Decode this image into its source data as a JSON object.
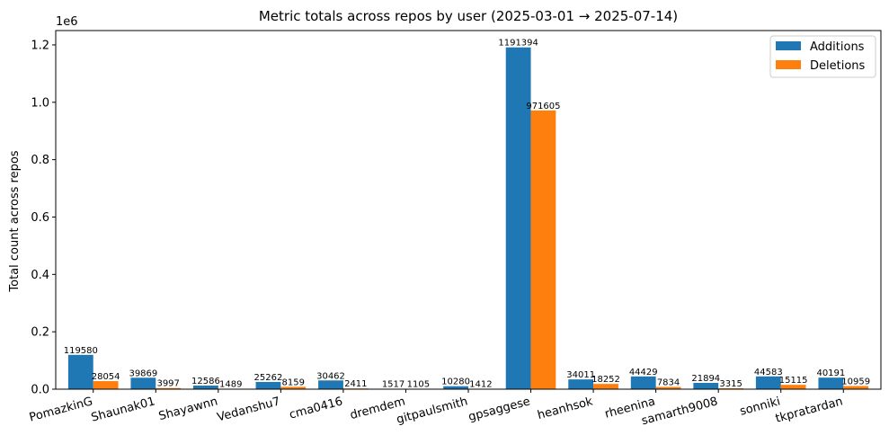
{
  "chart_data": {
    "type": "bar",
    "title": "Metric totals across repos by user (2025-03-01 → 2025-07-14)",
    "xlabel": "",
    "ylabel": "Total count across repos",
    "y_scale_label": "1e6",
    "ylim": [
      0,
      1250000
    ],
    "yticks": [
      0,
      200000,
      400000,
      600000,
      800000,
      1000000,
      1200000
    ],
    "ytick_labels": [
      "0.0",
      "0.2",
      "0.4",
      "0.6",
      "0.8",
      "1.0",
      "1.2"
    ],
    "grid": false,
    "legend": {
      "position": "top-right"
    },
    "categories": [
      "PomazkinG",
      "Shaunak01",
      "Shayawnn",
      "Vedanshu7",
      "cma0416",
      "dremdem",
      "gitpaulsmith",
      "gpsaggese",
      "heanhsok",
      "rheenina",
      "samarth9008",
      "sonniki",
      "tkpratardan"
    ],
    "series": [
      {
        "name": "Additions",
        "color": "#1f77b4",
        "values": [
          119580,
          39869,
          12586,
          25262,
          30462,
          1517,
          10280,
          1191394,
          34011,
          44429,
          21894,
          44583,
          40191
        ]
      },
      {
        "name": "Deletions",
        "color": "#ff7f0e",
        "values": [
          28054,
          3997,
          1489,
          8159,
          2411,
          1105,
          1412,
          971605,
          18252,
          7834,
          3315,
          15115,
          10959
        ]
      }
    ]
  }
}
